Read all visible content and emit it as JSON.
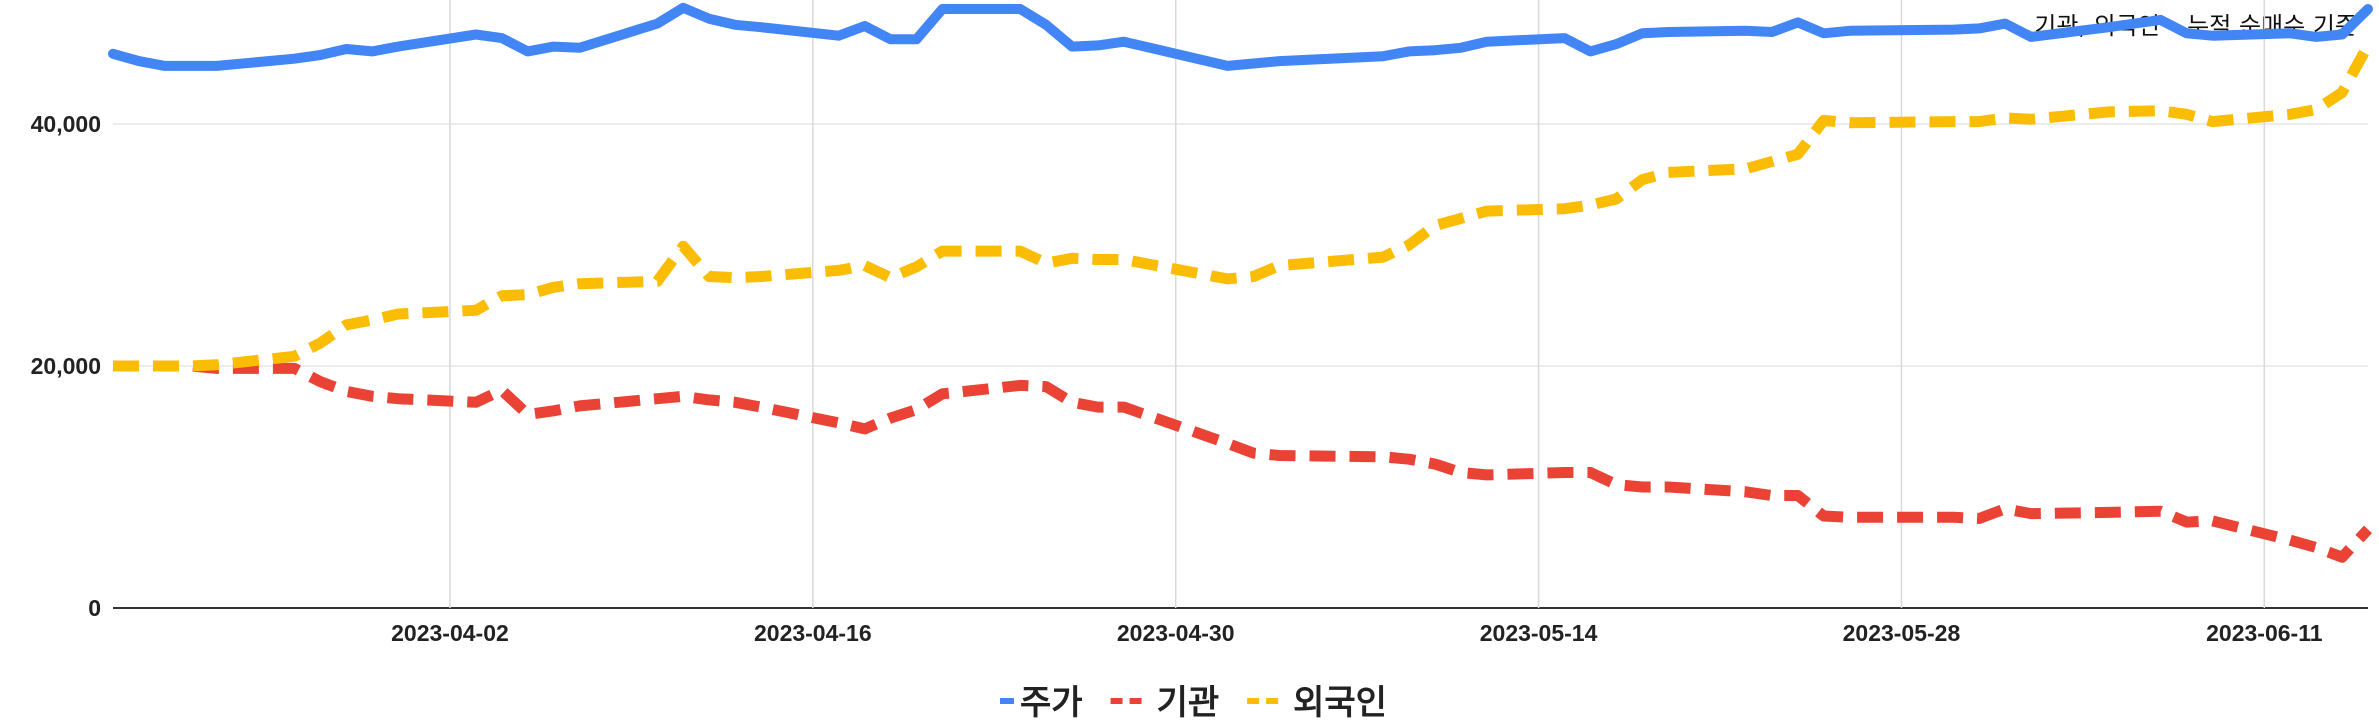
{
  "note": {
    "bullet": "•",
    "text": "기관, 외국인 – 누적 순매수 기준"
  },
  "chart_data": {
    "type": "line",
    "x": [
      "2023-03-20",
      "2023-03-21",
      "2023-03-22",
      "2023-03-23",
      "2023-03-24",
      "2023-03-27",
      "2023-03-28",
      "2023-03-29",
      "2023-03-30",
      "2023-03-31",
      "2023-04-03",
      "2023-04-04",
      "2023-04-05",
      "2023-04-06",
      "2023-04-07",
      "2023-04-10",
      "2023-04-11",
      "2023-04-12",
      "2023-04-13",
      "2023-04-14",
      "2023-04-17",
      "2023-04-18",
      "2023-04-19",
      "2023-04-20",
      "2023-04-21",
      "2023-04-24",
      "2023-04-25",
      "2023-04-26",
      "2023-04-27",
      "2023-04-28",
      "2023-05-02",
      "2023-05-03",
      "2023-05-04",
      "2023-05-08",
      "2023-05-09",
      "2023-05-10",
      "2023-05-11",
      "2023-05-12",
      "2023-05-15",
      "2023-05-16",
      "2023-05-17",
      "2023-05-18",
      "2023-05-19",
      "2023-05-22",
      "2023-05-23",
      "2023-05-24",
      "2023-05-25",
      "2023-05-26",
      "2023-05-30",
      "2023-05-31",
      "2023-06-01",
      "2023-06-02",
      "2023-06-05",
      "2023-06-07",
      "2023-06-08",
      "2023-06-09",
      "2023-06-12",
      "2023-06-13",
      "2023-06-14",
      "2023-06-15"
    ],
    "series": [
      {
        "name": "주가",
        "color": "#4285f4",
        "dash": "solid",
        "values": [
          45800,
          45200,
          44800,
          44800,
          44800,
          45400,
          45700,
          46200,
          46000,
          46400,
          47400,
          47100,
          46000,
          46400,
          46300,
          48300,
          49600,
          48700,
          48200,
          48000,
          47300,
          48100,
          47000,
          47000,
          49500,
          49500,
          48200,
          46400,
          46500,
          46800,
          44800,
          45000,
          45200,
          45600,
          46000,
          46100,
          46300,
          46800,
          47100,
          46000,
          46600,
          47500,
          47600,
          47700,
          47600,
          48400,
          47500,
          47700,
          47800,
          47900,
          48300,
          47200,
          48000,
          48600,
          47500,
          47300,
          47500,
          47200,
          47400,
          49500
        ]
      },
      {
        "name": "기관",
        "color": "#ea4335",
        "dash": "dashed",
        "values": [
          20000,
          20000,
          20000,
          20000,
          19800,
          19800,
          18700,
          17900,
          17500,
          17300,
          17000,
          18000,
          16000,
          16300,
          16700,
          17300,
          17500,
          17200,
          17000,
          16600,
          15300,
          14800,
          15700,
          16400,
          17700,
          18400,
          18300,
          17000,
          16600,
          16600,
          13600,
          12800,
          12600,
          12500,
          12300,
          11900,
          11200,
          11000,
          11200,
          11200,
          10200,
          10000,
          10000,
          9600,
          9300,
          9300,
          7600,
          7500,
          7500,
          7400,
          8200,
          7800,
          7900,
          8000,
          7100,
          7200,
          5600,
          5000,
          4200,
          6500
        ]
      },
      {
        "name": "외국인",
        "color": "#fbbc04",
        "dash": "dashed",
        "values": [
          20000,
          20000,
          20000,
          20000,
          20100,
          20800,
          21900,
          23400,
          23800,
          24300,
          24600,
          25800,
          25900,
          26500,
          26800,
          27000,
          29900,
          27400,
          27300,
          27400,
          27900,
          28300,
          27300,
          28200,
          29500,
          29500,
          28500,
          28900,
          28800,
          28800,
          27200,
          27400,
          28300,
          29000,
          30000,
          31600,
          32200,
          32800,
          33000,
          33300,
          33800,
          35400,
          36000,
          36300,
          36900,
          37500,
          40300,
          40100,
          40200,
          40200,
          40500,
          40400,
          41000,
          41100,
          40800,
          40200,
          40800,
          41200,
          42600,
          46500
        ]
      }
    ],
    "xticks": [
      "2023-04-02",
      "2023-04-16",
      "2023-04-30",
      "2023-05-14",
      "2023-05-28",
      "2023-06-11"
    ],
    "yticks": [
      0,
      20000,
      40000
    ],
    "ytick_labels": [
      "0",
      "20,000",
      "40,000"
    ],
    "ylim": [
      0,
      50000
    ],
    "grid": true,
    "legend": {
      "placement": "bottom-center",
      "entries": [
        "주가",
        "기관",
        "외국인"
      ]
    },
    "title": "",
    "xlabel": "",
    "ylabel": ""
  }
}
